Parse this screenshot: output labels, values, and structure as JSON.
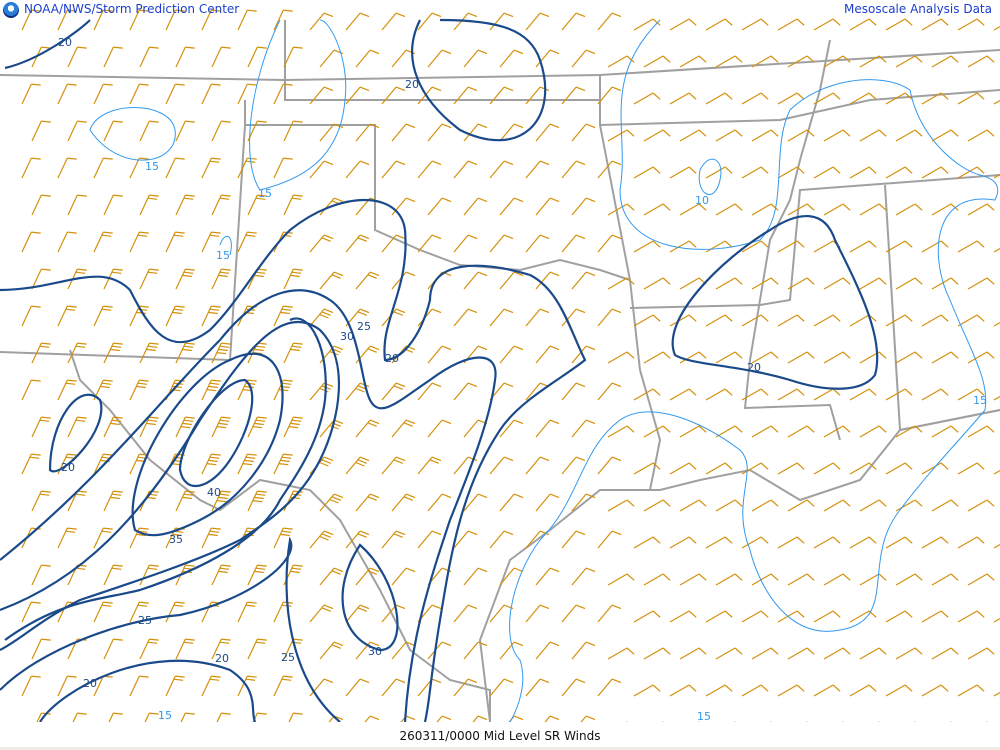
{
  "header": {
    "left_title": "NOAA/NWS/Storm Prediction Center",
    "right_title": "Mesoscale Analysis Data",
    "logo": "noaa-logo"
  },
  "footer": {
    "caption": "260311/0000 Mid Level SR Winds"
  },
  "colors": {
    "barbs": "#d4900a",
    "major_contours": "#1a4a8a",
    "minor_contours": "#3399ee",
    "borders": "#a0a0a0"
  },
  "contour_labels": [
    {
      "text": "20",
      "kind": "major"
    },
    {
      "text": "20",
      "kind": "major"
    },
    {
      "text": "15",
      "kind": "minor"
    },
    {
      "text": "15",
      "kind": "minor"
    },
    {
      "text": "15",
      "kind": "minor"
    },
    {
      "text": "10",
      "kind": "minor"
    },
    {
      "text": "25",
      "kind": "major"
    },
    {
      "text": "30",
      "kind": "major"
    },
    {
      "text": "20",
      "kind": "major"
    },
    {
      "text": "20",
      "kind": "major"
    },
    {
      "text": "20",
      "kind": "major"
    },
    {
      "text": "40",
      "kind": "major"
    },
    {
      "text": "35",
      "kind": "major"
    },
    {
      "text": "25",
      "kind": "major"
    },
    {
      "text": "20",
      "kind": "major"
    },
    {
      "text": "25",
      "kind": "major"
    },
    {
      "text": "30",
      "kind": "major"
    },
    {
      "text": "20",
      "kind": "major"
    },
    {
      "text": "15",
      "kind": "minor"
    },
    {
      "text": "15",
      "kind": "minor"
    },
    {
      "text": "15",
      "kind": "minor"
    }
  ]
}
